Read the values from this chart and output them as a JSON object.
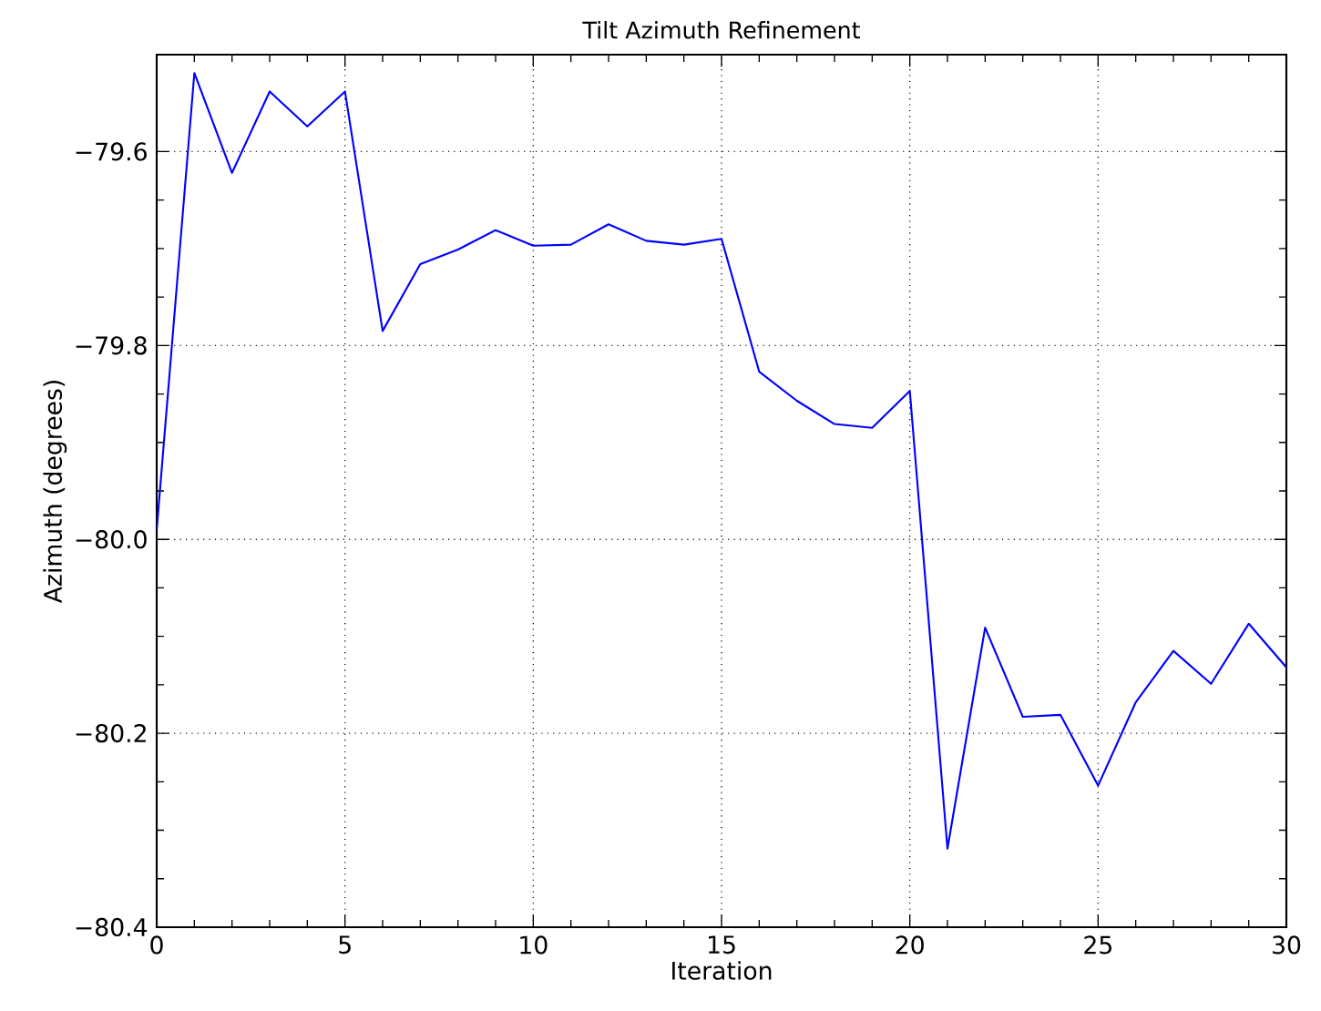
{
  "chart_data": {
    "type": "line",
    "title": "Tilt Azimuth Refinement",
    "xlabel": "Iteration",
    "ylabel": "Azimuth (degrees)",
    "x": [
      0,
      1,
      2,
      3,
      4,
      5,
      6,
      7,
      8,
      9,
      10,
      11,
      12,
      13,
      14,
      15,
      16,
      17,
      18,
      19,
      20,
      21,
      22,
      23,
      24,
      25,
      26,
      27,
      28,
      29,
      30
    ],
    "series": [
      {
        "color": "#0000ff",
        "values": [
          -79.99,
          -79.519,
          -79.622,
          -79.538,
          -79.574,
          -79.538,
          -79.785,
          -79.716,
          -79.701,
          -79.681,
          -79.697,
          -79.696,
          -79.675,
          -79.692,
          -79.696,
          -79.69,
          -79.827,
          -79.857,
          -79.881,
          -79.885,
          -79.847,
          -80.319,
          -80.091,
          -80.183,
          -80.181,
          -80.254,
          -80.168,
          -80.115,
          -80.149,
          -80.087,
          -80.132
        ]
      }
    ],
    "xlim": [
      0,
      30
    ],
    "ylim": [
      -80.4,
      -79.5
    ],
    "xticks": [
      0,
      5,
      10,
      15,
      20,
      25,
      30
    ],
    "yticks": [
      {
        "value": -80.4,
        "label": "−80.4"
      },
      {
        "value": -80.2,
        "label": "−80.2"
      },
      {
        "value": -80.0,
        "label": "−80.0"
      },
      {
        "value": -79.8,
        "label": "−79.8"
      },
      {
        "value": -79.6,
        "label": "−79.6"
      }
    ],
    "grid": true,
    "marker": "none",
    "line_style": "solid"
  }
}
